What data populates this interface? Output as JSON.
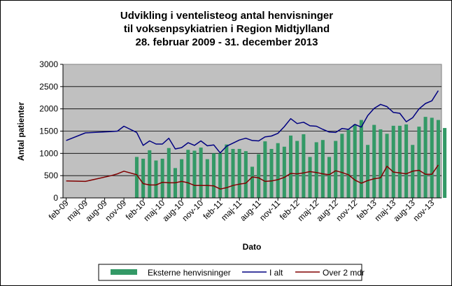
{
  "chart_data": {
    "type": "bar+line",
    "title_lines": [
      "Udvikling i ventelisteog antal henvisninger",
      "til voksenpsykiatrien i Region Midtjylland",
      "28. februar 2009 - 31. december 2013"
    ],
    "xlabel": "Dato",
    "ylabel": "Antal patienter",
    "ylim": [
      0,
      3000
    ],
    "yticks": [
      0,
      500,
      1000,
      1500,
      2000,
      2500,
      3000
    ],
    "x_start": "2009-02",
    "x_end": "2013-12",
    "xtick_labels": [
      "feb-09",
      "maj-09",
      "aug-09",
      "nov-09",
      "feb-10",
      "maj-10",
      "aug-10",
      "nov-10",
      "feb-11",
      "maj-11",
      "aug-11",
      "nov-11",
      "feb-12",
      "maj-12",
      "aug-12",
      "nov-12",
      "feb-13",
      "maj-13",
      "aug-13",
      "nov-13"
    ],
    "grid": true,
    "legend_position": "bottom",
    "colors": {
      "plot_bg": "#c0c0c0",
      "bars": "#339966",
      "i_alt": "#000080",
      "over2": "#800000",
      "grid": "#000000"
    },
    "series": [
      {
        "name": "Eksterne henvisninger",
        "type": "bar",
        "start": "2010-01",
        "values": [
          920,
          880,
          1070,
          840,
          880,
          1120,
          670,
          870,
          1080,
          1060,
          1130,
          870,
          1000,
          1000,
          1200,
          1100,
          1100,
          1050,
          700,
          980,
          1270,
          1100,
          1230,
          1150,
          1400,
          1280,
          1430,
          920,
          1250,
          1300,
          920,
          1280,
          1440,
          1530,
          1650,
          1750,
          1190,
          1640,
          1540,
          1440,
          1620,
          1620,
          1650,
          1190,
          1600,
          1820,
          1800,
          1750,
          1570
        ]
      },
      {
        "name": "I alt",
        "type": "line",
        "points": [
          [
            "2009-02",
            1290
          ],
          [
            "2009-05",
            1460
          ],
          [
            "2009-09",
            1490
          ],
          [
            "2009-10",
            1500
          ],
          [
            "2009-11",
            1610
          ],
          [
            "2010-01",
            1470
          ],
          [
            "2010-02",
            1180
          ],
          [
            "2010-03",
            1280
          ],
          [
            "2010-04",
            1210
          ],
          [
            "2010-05",
            1210
          ],
          [
            "2010-06",
            1340
          ],
          [
            "2010-07",
            1100
          ],
          [
            "2010-08",
            1130
          ],
          [
            "2010-09",
            1240
          ],
          [
            "2010-10",
            1180
          ],
          [
            "2010-11",
            1280
          ],
          [
            "2010-12",
            1170
          ],
          [
            "2011-01",
            1190
          ],
          [
            "2011-02",
            1010
          ],
          [
            "2011-03",
            1160
          ],
          [
            "2011-04",
            1230
          ],
          [
            "2011-05",
            1300
          ],
          [
            "2011-06",
            1340
          ],
          [
            "2011-07",
            1290
          ],
          [
            "2011-08",
            1280
          ],
          [
            "2011-09",
            1370
          ],
          [
            "2011-10",
            1390
          ],
          [
            "2011-11",
            1450
          ],
          [
            "2011-12",
            1600
          ],
          [
            "2012-01",
            1780
          ],
          [
            "2012-02",
            1670
          ],
          [
            "2012-03",
            1700
          ],
          [
            "2012-04",
            1620
          ],
          [
            "2012-05",
            1610
          ],
          [
            "2012-06",
            1540
          ],
          [
            "2012-07",
            1480
          ],
          [
            "2012-08",
            1470
          ],
          [
            "2012-09",
            1560
          ],
          [
            "2012-10",
            1540
          ],
          [
            "2012-11",
            1650
          ],
          [
            "2012-12",
            1590
          ],
          [
            "2013-01",
            1850
          ],
          [
            "2013-02",
            2010
          ],
          [
            "2013-03",
            2100
          ],
          [
            "2013-04",
            2050
          ],
          [
            "2013-05",
            1920
          ],
          [
            "2013-06",
            1900
          ],
          [
            "2013-07",
            1710
          ],
          [
            "2013-08",
            1800
          ],
          [
            "2013-09",
            2000
          ],
          [
            "2013-10",
            2120
          ],
          [
            "2013-11",
            2180
          ],
          [
            "2013-12",
            2410
          ]
        ]
      },
      {
        "name": "Over 2 mdr",
        "type": "line",
        "points": [
          [
            "2009-02",
            380
          ],
          [
            "2009-05",
            370
          ],
          [
            "2009-09",
            500
          ],
          [
            "2009-10",
            540
          ],
          [
            "2009-11",
            600
          ],
          [
            "2010-01",
            520
          ],
          [
            "2010-02",
            320
          ],
          [
            "2010-03",
            290
          ],
          [
            "2010-04",
            290
          ],
          [
            "2010-05",
            350
          ],
          [
            "2010-06",
            340
          ],
          [
            "2010-07",
            340
          ],
          [
            "2010-08",
            370
          ],
          [
            "2010-09",
            340
          ],
          [
            "2010-10",
            280
          ],
          [
            "2010-11",
            280
          ],
          [
            "2010-12",
            280
          ],
          [
            "2011-01",
            270
          ],
          [
            "2011-02",
            200
          ],
          [
            "2011-03",
            230
          ],
          [
            "2011-04",
            280
          ],
          [
            "2011-05",
            310
          ],
          [
            "2011-06",
            330
          ],
          [
            "2011-07",
            470
          ],
          [
            "2011-08",
            450
          ],
          [
            "2011-09",
            370
          ],
          [
            "2011-10",
            380
          ],
          [
            "2011-11",
            410
          ],
          [
            "2011-12",
            460
          ],
          [
            "2012-01",
            550
          ],
          [
            "2012-02",
            540
          ],
          [
            "2012-03",
            560
          ],
          [
            "2012-04",
            590
          ],
          [
            "2012-05",
            570
          ],
          [
            "2012-06",
            540
          ],
          [
            "2012-07",
            520
          ],
          [
            "2012-08",
            610
          ],
          [
            "2012-09",
            570
          ],
          [
            "2012-10",
            520
          ],
          [
            "2012-11",
            400
          ],
          [
            "2012-12",
            330
          ],
          [
            "2013-01",
            390
          ],
          [
            "2013-02",
            430
          ],
          [
            "2013-03",
            450
          ],
          [
            "2013-04",
            710
          ],
          [
            "2013-05",
            580
          ],
          [
            "2013-06",
            560
          ],
          [
            "2013-07",
            540
          ],
          [
            "2013-08",
            600
          ],
          [
            "2013-09",
            620
          ],
          [
            "2013-10",
            530
          ],
          [
            "2013-11",
            530
          ],
          [
            "2013-12",
            740
          ]
        ]
      }
    ]
  }
}
